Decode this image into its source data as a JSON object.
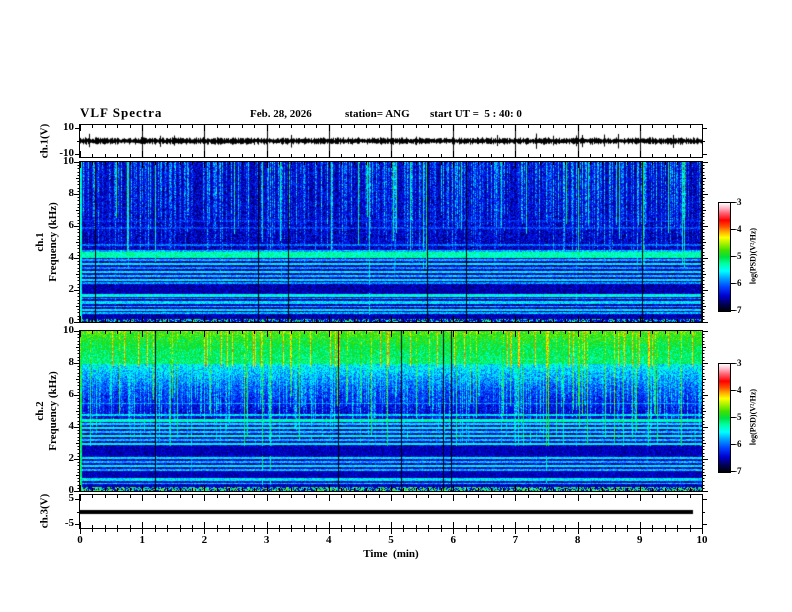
{
  "header": {
    "title": "VLF Spectra",
    "date": "Feb. 28, 2026",
    "station": "station= ANG",
    "start_ut": "start UT =  5 : 40: 0"
  },
  "xaxis": {
    "label": "Time  (min)",
    "ticks": [
      0,
      1,
      2,
      3,
      4,
      5,
      6,
      7,
      8,
      9,
      10
    ],
    "range": [
      0,
      10
    ],
    "minor_step_min": 0.2
  },
  "colorbars": [
    {
      "label": "log(PSD)(V²/Hz)",
      "ticks": [
        "-3",
        "-4",
        "-5",
        "-6",
        "-7"
      ],
      "range": [
        -7,
        -3
      ]
    },
    {
      "label": "log(PSD)(V²/Hz)",
      "ticks": [
        "-3",
        "-4",
        "-5",
        "-6",
        "-7"
      ],
      "range": [
        -7,
        -3
      ]
    }
  ],
  "colormap_stops": [
    [
      0.0,
      "#000006"
    ],
    [
      0.06,
      "#000050"
    ],
    [
      0.14,
      "#0000d0"
    ],
    [
      0.22,
      "#0040ff"
    ],
    [
      0.3,
      "#00a0ff"
    ],
    [
      0.37,
      "#00ffff"
    ],
    [
      0.44,
      "#00ffa0"
    ],
    [
      0.5,
      "#00e040"
    ],
    [
      0.56,
      "#40e000"
    ],
    [
      0.62,
      "#a0f000"
    ],
    [
      0.68,
      "#ffff00"
    ],
    [
      0.73,
      "#ffb000"
    ],
    [
      0.78,
      "#ff5000"
    ],
    [
      0.84,
      "#ff0000"
    ],
    [
      0.9,
      "#ff5868"
    ],
    [
      0.95,
      "#ffb0c0"
    ],
    [
      1.0,
      "#ffffff"
    ]
  ],
  "chart_data": [
    {
      "type": "line",
      "panel": "ch1-voltage",
      "ylabel": "ch.1(V)",
      "yticks": [
        10,
        -10
      ],
      "ylim": [
        -10,
        10
      ],
      "xlim": [
        0,
        10
      ],
      "signal": {
        "baseline_V": 0,
        "noise_peak_V": 2.5,
        "spike_prob": 0.03,
        "description": "continuous broadband noise centered on 0 V over full 10 min, 1-min vertical gridlines"
      }
    },
    {
      "type": "heatmap",
      "panel": "ch1-spectrogram",
      "ylabel_ch": "ch.1",
      "ylabel_freq": "Frequency (kHz)",
      "yticks": [
        10,
        8,
        6,
        4,
        2,
        0
      ],
      "ylim": [
        0,
        10
      ],
      "xlim": [
        0,
        10
      ],
      "zlabel": "log(PSD)(V²/Hz)",
      "zlim": [
        -7,
        -3
      ],
      "render": {
        "bg": -6.75,
        "noise": 0.55,
        "streaks": {
          "density": 0.55,
          "v_min": -6.0,
          "v_max": -5.2,
          "strong_frac": 0.07,
          "strong_v": -4.9,
          "depth_min": 3.0,
          "depth_max": 6.8,
          "falloff": 0.06,
          "pierce_frac": 0.04
        },
        "dropout": 0.004,
        "edge_v": -5.2,
        "bands": [
          [
            4.2,
            0.2,
            -5.05
          ],
          [
            4.45,
            0.08,
            -5.5
          ],
          [
            4.85,
            0.05,
            -5.75
          ],
          [
            3.9,
            0.07,
            -5.5
          ],
          [
            3.65,
            0.08,
            -5.25
          ],
          [
            3.4,
            0.06,
            -5.6
          ],
          [
            3.15,
            0.08,
            -5.3
          ],
          [
            2.9,
            0.07,
            -5.45
          ],
          [
            2.65,
            0.06,
            -5.3
          ],
          [
            2.45,
            0.06,
            -5.6
          ],
          [
            1.7,
            0.08,
            -5.2
          ],
          [
            1.5,
            0.06,
            -5.6
          ],
          [
            1.25,
            0.07,
            -5.35
          ],
          [
            1.0,
            0.06,
            -5.5
          ],
          [
            0.8,
            0.07,
            -5.3
          ],
          [
            0.62,
            0.06,
            -5.5
          ],
          [
            5.9,
            0.05,
            -5.9
          ],
          [
            6.35,
            0.05,
            -6.05
          ]
        ],
        "dark_bands": [
          [
            1.85,
            2.35
          ],
          [
            0.05,
            0.5
          ]
        ],
        "speckle": {
          "f_max": 0.25,
          "prob": 0.45,
          "v_min": -6.2,
          "v_max": -4.6
        }
      }
    },
    {
      "type": "heatmap",
      "panel": "ch2-spectrogram",
      "ylabel_ch": "ch.2",
      "ylabel_freq": "Frequency (kHz)",
      "yticks": [
        10,
        8,
        6,
        4,
        2,
        0
      ],
      "ylim": [
        0,
        10
      ],
      "xlim": [
        0,
        10
      ],
      "zlabel": "log(PSD)(V²/Hz)",
      "zlim": [
        -7,
        -3
      ],
      "render": {
        "bg": -6.7,
        "noise": 0.55,
        "streaks": {
          "density": 0.6,
          "v_min": -5.6,
          "v_max": -4.7,
          "strong_frac": 0.12,
          "strong_v": -4.35,
          "depth_min": 2.2,
          "depth_max": 6.0,
          "falloff": 0.1,
          "pierce_frac": 0.08
        },
        "ramp": {
          "f0": 5.0,
          "base": -6.3,
          "rate": 0.38
        },
        "topband": {
          "f": 8.0,
          "v": -4.8
        },
        "hot": {
          "prob": 0.07,
          "f_min": 7.8,
          "v": -3.9,
          "rand": 0.5
        },
        "dropout": 0.01,
        "edge_v": -4.9,
        "bands": [
          [
            4.8,
            0.06,
            -5.35
          ],
          [
            4.45,
            0.08,
            -5.1
          ],
          [
            4.2,
            0.07,
            -5.35
          ],
          [
            3.95,
            0.07,
            -5.15
          ],
          [
            3.7,
            0.06,
            -5.4
          ],
          [
            3.45,
            0.07,
            -5.1
          ],
          [
            3.2,
            0.06,
            -5.45
          ],
          [
            2.95,
            0.07,
            -5.2
          ],
          [
            2.1,
            0.07,
            -5.3
          ],
          [
            1.85,
            0.06,
            -5.5
          ],
          [
            1.6,
            0.07,
            -5.25
          ],
          [
            1.35,
            0.06,
            -5.5
          ],
          [
            0.75,
            0.07,
            -5.3
          ],
          [
            0.5,
            0.06,
            -5.45
          ],
          [
            5.5,
            0.05,
            -5.6
          ]
        ],
        "dark_bands": [
          [
            2.25,
            2.85
          ],
          [
            0.85,
            1.25
          ],
          [
            0.05,
            0.4
          ]
        ],
        "speckle": {
          "f_max": 0.3,
          "prob": 0.6,
          "v_min": -5.8,
          "v_max": -4.4
        }
      }
    },
    {
      "type": "line",
      "panel": "ch3-voltage",
      "ylabel": "ch.3(V)",
      "yticks": [
        5,
        -5
      ],
      "ylim": [
        -5,
        5
      ],
      "xlim": [
        0,
        10
      ],
      "signal": {
        "baseline_V": 0,
        "flat": true,
        "trace_end_min": 9.85,
        "thickness_px": 4,
        "description": "flat thick trace at 0 V ending just before 10 min"
      }
    }
  ]
}
